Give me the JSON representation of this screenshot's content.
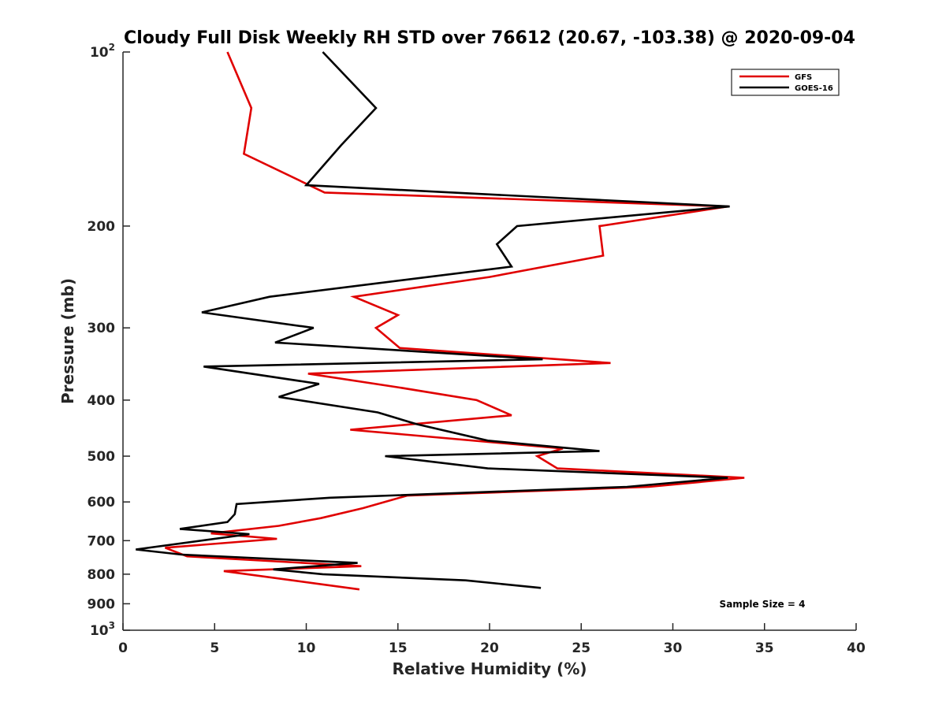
{
  "chart_data": {
    "type": "line",
    "title": "Cloudy Full Disk Weekly RH STD over 76612 (20.67, -103.38) @ 2020-09-04",
    "xlabel": "Relative Humidity (%)",
    "ylabel": "Pressure (mb)",
    "xlim": [
      0,
      40
    ],
    "ylim": [
      100,
      1000
    ],
    "yscale": "log",
    "y_reversed": true,
    "grid": false,
    "xticks": [
      0,
      5,
      10,
      15,
      20,
      25,
      30,
      35,
      40
    ],
    "xtick_labels": [
      "0",
      "5",
      "10",
      "15",
      "20",
      "25",
      "30",
      "35",
      "40"
    ],
    "yticks": [
      100,
      200,
      300,
      400,
      500,
      600,
      700,
      800,
      900,
      1000
    ],
    "ytick_labels": [
      {
        "base": "10",
        "exp": "2"
      },
      {
        "base": "200",
        "exp": ""
      },
      {
        "base": "300",
        "exp": ""
      },
      {
        "base": "400",
        "exp": ""
      },
      {
        "base": "500",
        "exp": ""
      },
      {
        "base": "600",
        "exp": ""
      },
      {
        "base": "700",
        "exp": ""
      },
      {
        "base": "800",
        "exp": ""
      },
      {
        "base": "900",
        "exp": ""
      },
      {
        "base": "10",
        "exp": "3"
      }
    ],
    "legend_position": "top-right",
    "annotation": "Sample Size = 4",
    "series": [
      {
        "name": "GFS",
        "color": "#e00000",
        "x": [
          5.7,
          7.0,
          6.6,
          11.0,
          33.0,
          26.0,
          26.2,
          20.0,
          12.6,
          15.0,
          13.8,
          15.1,
          26.6,
          10.1,
          15.0,
          19.3,
          21.2,
          12.4,
          24.0,
          22.6,
          23.7,
          33.9,
          28.7,
          15.5,
          13.1,
          10.8,
          8.5,
          4.8,
          8.4,
          2.3,
          3.5,
          13.0,
          5.5,
          12.9
        ],
        "y": [
          100,
          125,
          150,
          175,
          185,
          200,
          225,
          245,
          265,
          285,
          300,
          325,
          345,
          360,
          380,
          400,
          425,
          450,
          485,
          500,
          525,
          545,
          565,
          585,
          615,
          640,
          660,
          680,
          695,
          720,
          745,
          775,
          790,
          850
        ]
      },
      {
        "name": "GOES-16",
        "color": "#000000",
        "x": [
          10.9,
          13.8,
          11.9,
          10.0,
          33.1,
          21.5,
          20.4,
          21.2,
          8.0,
          4.3,
          10.4,
          8.3,
          22.9,
          4.4,
          10.7,
          8.5,
          13.9,
          16.0,
          19.9,
          26.0,
          14.3,
          19.9,
          33.0,
          27.5,
          11.3,
          6.2,
          6.1,
          5.7,
          3.1,
          6.9,
          0.7,
          3.2,
          12.8,
          8.2,
          10.9,
          18.7,
          22.8
        ],
        "y": [
          100,
          125,
          145,
          170,
          185,
          200,
          215,
          235,
          265,
          282,
          300,
          318,
          340,
          350,
          375,
          395,
          420,
          440,
          470,
          490,
          500,
          525,
          545,
          565,
          590,
          605,
          630,
          650,
          668,
          682,
          725,
          740,
          765,
          785,
          800,
          820,
          845
        ]
      }
    ]
  }
}
